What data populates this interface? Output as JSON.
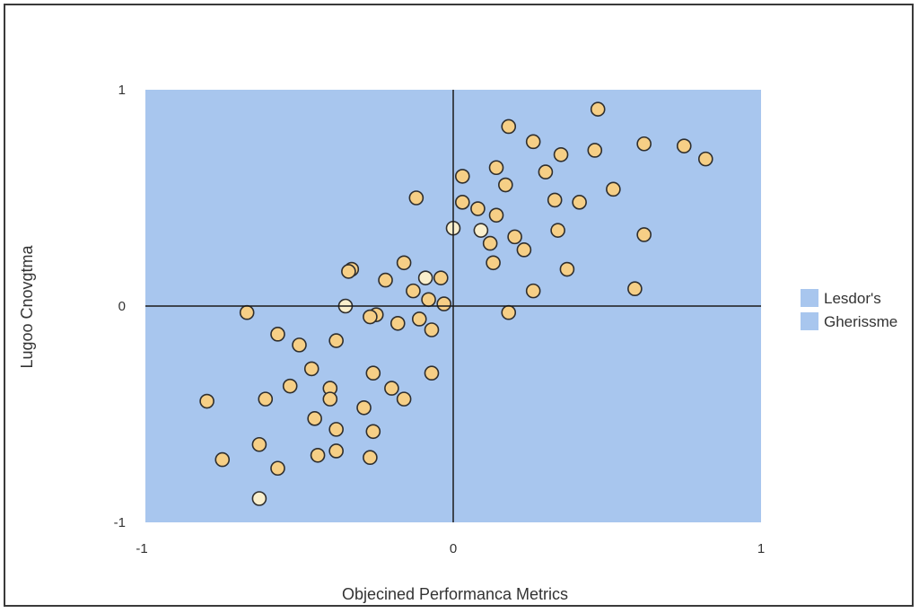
{
  "chart_data": {
    "type": "scatter",
    "xlabel": "Objecined Performanca Metrics",
    "ylabel": "Lugoo Cnovgtma",
    "xlim": [
      -1,
      1
    ],
    "ylim": [
      -1,
      1
    ],
    "x_ticks": [
      "-1",
      "0",
      "1"
    ],
    "y_ticks": [
      "1",
      "0",
      "-1"
    ],
    "legend": {
      "placement": "right",
      "entries": [
        "Lesdor's",
        "Gherissme"
      ]
    },
    "grid": false,
    "colors": {
      "plot_background": "#a8c6ee",
      "point_fill": "#f6cf86",
      "point_fill_light": "#faefcc",
      "point_stroke": "#2e2e2e",
      "axis_line": "#1a1a1a",
      "legend_swatch": "#a8c6ee"
    },
    "points": [
      [
        0.47,
        0.91
      ],
      [
        0.18,
        0.83
      ],
      [
        0.26,
        0.76
      ],
      [
        0.46,
        0.72
      ],
      [
        0.62,
        0.75
      ],
      [
        0.75,
        0.74
      ],
      [
        0.82,
        0.68
      ],
      [
        0.35,
        0.7
      ],
      [
        0.14,
        0.64
      ],
      [
        0.3,
        0.62
      ],
      [
        0.03,
        0.6
      ],
      [
        0.17,
        0.56
      ],
      [
        0.52,
        0.54
      ],
      [
        -0.12,
        0.5
      ],
      [
        0.33,
        0.49
      ],
      [
        0.41,
        0.48
      ],
      [
        0.03,
        0.48
      ],
      [
        0.08,
        0.45
      ],
      [
        0.14,
        0.42
      ],
      [
        0.0,
        0.36
      ],
      [
        0.09,
        0.35
      ],
      [
        0.34,
        0.35
      ],
      [
        0.62,
        0.33
      ],
      [
        0.2,
        0.32
      ],
      [
        0.12,
        0.29
      ],
      [
        0.23,
        0.26
      ],
      [
        0.13,
        0.2
      ],
      [
        -0.16,
        0.2
      ],
      [
        0.37,
        0.17
      ],
      [
        -0.33,
        0.17
      ],
      [
        -0.34,
        0.16
      ],
      [
        -0.04,
        0.13
      ],
      [
        -0.09,
        0.13
      ],
      [
        -0.22,
        0.12
      ],
      [
        0.26,
        0.07
      ],
      [
        0.59,
        0.08
      ],
      [
        -0.13,
        0.07
      ],
      [
        -0.08,
        0.03
      ],
      [
        -0.03,
        0.01
      ],
      [
        -0.35,
        0.0
      ],
      [
        0.18,
        -0.03
      ],
      [
        -0.67,
        -0.03
      ],
      [
        -0.25,
        -0.04
      ],
      [
        -0.27,
        -0.05
      ],
      [
        -0.11,
        -0.06
      ],
      [
        -0.18,
        -0.08
      ],
      [
        -0.07,
        -0.11
      ],
      [
        -0.57,
        -0.13
      ],
      [
        -0.38,
        -0.16
      ],
      [
        -0.5,
        -0.18
      ],
      [
        -0.46,
        -0.29
      ],
      [
        -0.07,
        -0.31
      ],
      [
        -0.26,
        -0.31
      ],
      [
        -0.53,
        -0.37
      ],
      [
        -0.4,
        -0.38
      ],
      [
        -0.2,
        -0.38
      ],
      [
        -0.4,
        -0.43
      ],
      [
        -0.61,
        -0.43
      ],
      [
        -0.16,
        -0.43
      ],
      [
        -0.8,
        -0.44
      ],
      [
        -0.29,
        -0.47
      ],
      [
        -0.45,
        -0.52
      ],
      [
        -0.38,
        -0.57
      ],
      [
        -0.26,
        -0.58
      ],
      [
        -0.63,
        -0.64
      ],
      [
        -0.38,
        -0.67
      ],
      [
        -0.44,
        -0.69
      ],
      [
        -0.27,
        -0.7
      ],
      [
        -0.75,
        -0.71
      ],
      [
        -0.57,
        -0.75
      ],
      [
        -0.63,
        -0.89
      ]
    ],
    "light_points": [
      [
        0.0,
        0.36
      ],
      [
        0.09,
        0.35
      ],
      [
        -0.35,
        0.0
      ],
      [
        -0.63,
        -0.89
      ],
      [
        -0.09,
        0.13
      ]
    ]
  }
}
